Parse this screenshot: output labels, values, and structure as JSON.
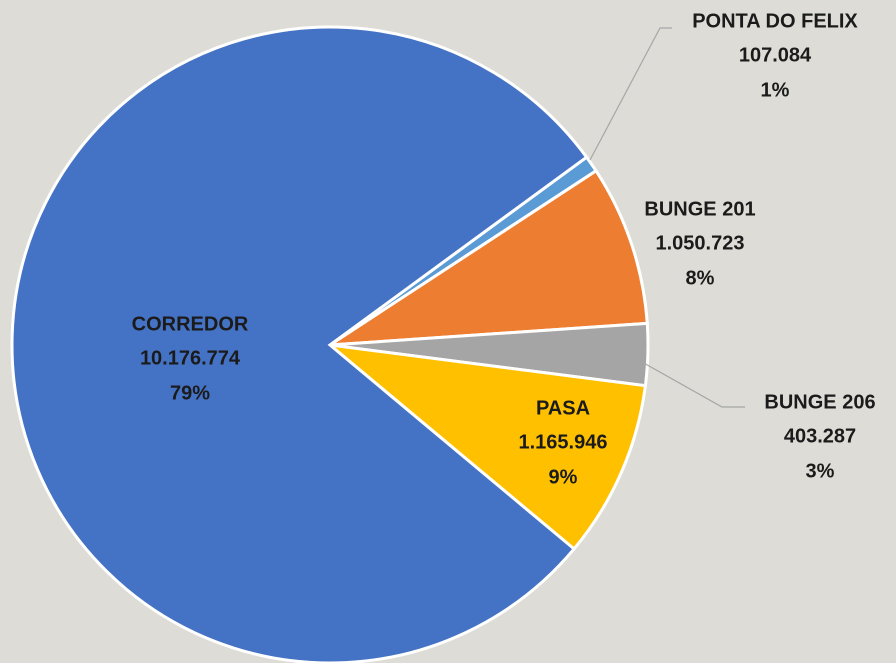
{
  "chart_data": {
    "type": "pie",
    "labels": [
      "PONTA DO FELIX",
      "BUNGE 201",
      "BUNGE 206",
      "PASA",
      "CORREDOR"
    ],
    "values": [
      107084,
      1050723,
      403287,
      1165946,
      10176774
    ],
    "value_labels": [
      "107.084",
      "1.050.723",
      "403.287",
      "1.165.946",
      "10.176.774"
    ],
    "percent_labels": [
      "1%",
      "8%",
      "3%",
      "9%",
      "79%"
    ],
    "colors": [
      "#5b9bd5",
      "#ed7d31",
      "#a5a5a5",
      "#ffc000",
      "#4472c4"
    ]
  }
}
